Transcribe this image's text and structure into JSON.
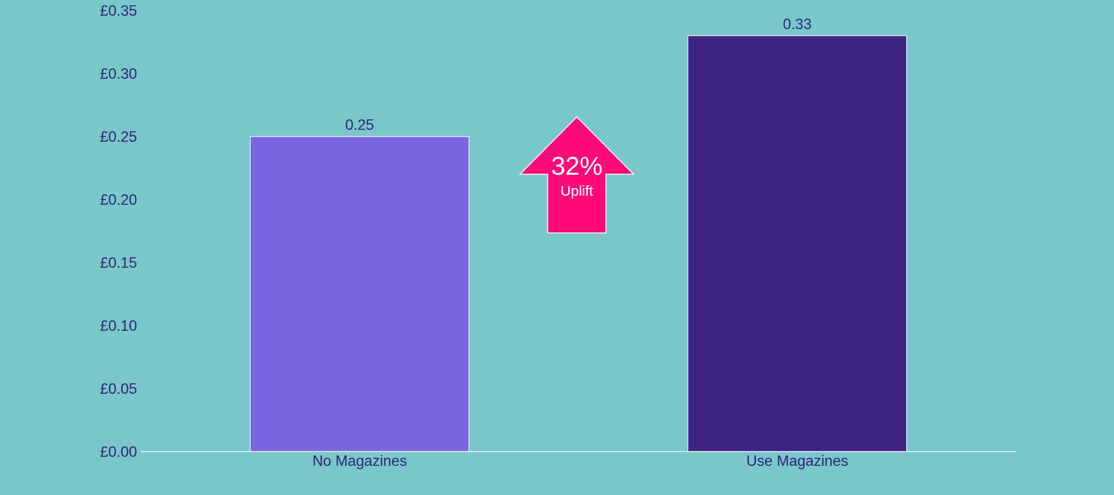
{
  "chart_data": {
    "type": "bar",
    "categories": [
      "No Magazines",
      "Use Magazines"
    ],
    "values": [
      0.25,
      0.33
    ],
    "colors": [
      "#7B66E2",
      "#3F2581"
    ],
    "ylim": [
      0,
      0.35
    ],
    "yticks": [
      {
        "value": 0,
        "label": "£0.00"
      },
      {
        "value": 0.05,
        "label": "£0.05"
      },
      {
        "value": 0.1,
        "label": "£0.10"
      },
      {
        "value": 0.15,
        "label": "£0.15"
      },
      {
        "value": 0.2,
        "label": "£0.20"
      },
      {
        "value": 0.25,
        "label": "£0.25"
      },
      {
        "value": 0.3,
        "label": "£0.30"
      },
      {
        "value": 0.35,
        "label": "£0.35"
      }
    ],
    "data_labels": true,
    "grid": false,
    "annotations": [
      "32%",
      "Uplift"
    ]
  }
}
